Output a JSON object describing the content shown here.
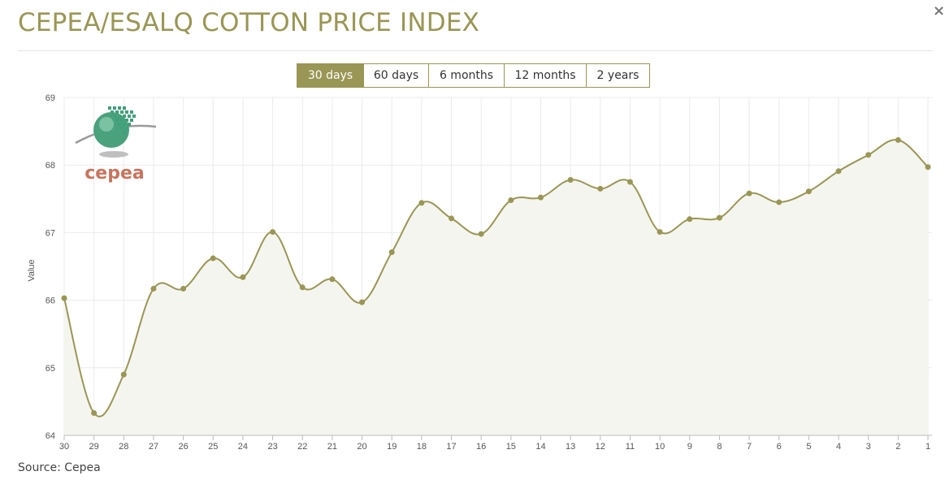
{
  "header": {
    "title": "CEPEA/ESALQ COTTON PRICE INDEX",
    "close_symbol": "×",
    "close_icon": "close-icon"
  },
  "tabs": [
    {
      "label": "30 days",
      "active": true
    },
    {
      "label": "60 days",
      "active": false
    },
    {
      "label": "6 months",
      "active": false
    },
    {
      "label": "12 months",
      "active": false
    },
    {
      "label": "2 years",
      "active": false
    }
  ],
  "logo": {
    "text": "cepea",
    "icon": "cepea-globe-logo"
  },
  "footer": {
    "source": "Source: Cepea"
  },
  "colors": {
    "accent": "#9a9655",
    "line": "#9a9655",
    "area": "#f5f5f0",
    "grid": "#ebebeb",
    "logo_text": "#c8745f",
    "logo_globe": "#3fa07a"
  },
  "chart_data": {
    "type": "area",
    "title": "",
    "xlabel": "",
    "ylabel": "Value",
    "ylim": [
      64,
      69
    ],
    "yticks": [
      64,
      65,
      66,
      67,
      68,
      69
    ],
    "grid": true,
    "categories": [
      "30",
      "29",
      "28",
      "27",
      "26",
      "25",
      "24",
      "23",
      "22",
      "21",
      "20",
      "19",
      "18",
      "17",
      "16",
      "15",
      "14",
      "13",
      "12",
      "11",
      "10",
      "9",
      "8",
      "7",
      "6",
      "5",
      "4",
      "3",
      "2",
      "1"
    ],
    "series": [
      {
        "values": [
          66.03,
          64.33,
          64.9,
          66.17,
          66.17,
          66.62,
          66.34,
          67.01,
          66.19,
          66.31,
          65.97,
          66.71,
          67.44,
          67.21,
          66.98,
          67.48,
          67.52,
          67.78,
          67.65,
          67.75,
          67.01,
          67.2,
          67.22,
          67.58,
          67.45,
          67.61,
          67.91,
          68.15,
          68.37,
          67.97
        ]
      }
    ]
  }
}
